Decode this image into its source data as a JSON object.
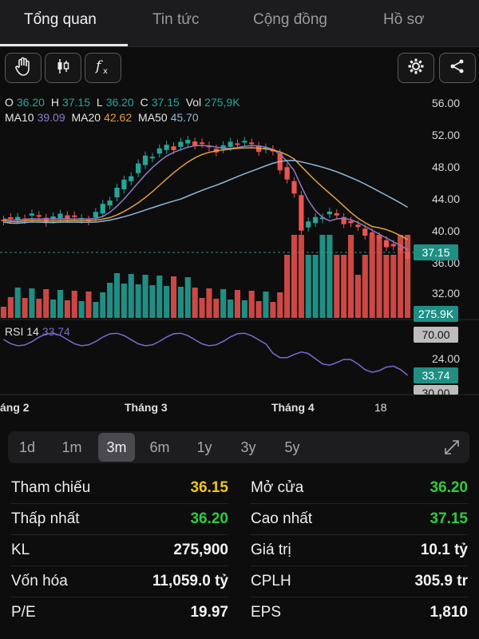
{
  "tabs": [
    {
      "label": "Tổng quan",
      "active": true
    },
    {
      "label": "Tin tức",
      "active": false
    },
    {
      "label": "Cộng đồng",
      "active": false
    },
    {
      "label": "Hồ sơ",
      "active": false
    }
  ],
  "toolbar": {
    "icons": [
      "hand-icon",
      "candlestick-icon",
      "function-icon",
      "settings-icon",
      "share-icon"
    ]
  },
  "ohlc": {
    "o_label": "O",
    "o": "36.20",
    "h_label": "H",
    "h": "37.15",
    "l_label": "L",
    "l": "36.20",
    "c_label": "C",
    "c": "37.15",
    "vol_label": "Vol",
    "vol": "275,9K"
  },
  "ma": {
    "ma10_label": "MA10",
    "ma10": "39.09",
    "ma20_label": "MA20",
    "ma20": "42.62",
    "ma50_label": "MA50",
    "ma50": "45.70"
  },
  "colors": {
    "up": "#26a69a",
    "down": "#ef5350",
    "ma10": "#8e7cc3",
    "ma20": "#e0a040",
    "ma50": "#8fb8d8",
    "ref": "#f5c518",
    "green": "#2ecc40",
    "rsi": "#7b6bd0"
  },
  "price_axis": [
    "56.00",
    "52.00",
    "48.00",
    "44.00",
    "40.00",
    "36.00",
    "32.00"
  ],
  "price_tag": "37.15",
  "volume_tag": "275.9K",
  "rsi": {
    "label": "RSI 14",
    "value": "33.74",
    "axis": [
      "70.00",
      "24.00",
      "30.00"
    ]
  },
  "months": [
    "áng 2",
    "Tháng 3",
    "Tháng 4",
    "18"
  ],
  "ranges": [
    "1d",
    "1m",
    "3m",
    "6m",
    "1y",
    "3y",
    "5y"
  ],
  "active_range": "3m",
  "stats_left": [
    {
      "label": "Tham chiếu",
      "value": "36.15",
      "color": "#f5c518"
    },
    {
      "label": "Thấp nhất",
      "value": "36.20",
      "color": "#2ecc40"
    },
    {
      "label": "KL",
      "value": "275,900",
      "color": "#f2f2f2"
    },
    {
      "label": "Vốn hóa",
      "value": "11,059.0 tỷ",
      "color": "#f2f2f2"
    },
    {
      "label": "P/E",
      "value": "19.97",
      "color": "#f2f2f2"
    }
  ],
  "stats_right": [
    {
      "label": "Mở cửa",
      "value": "36.20",
      "color": "#2ecc40"
    },
    {
      "label": "Cao nhất",
      "value": "37.15",
      "color": "#2ecc40"
    },
    {
      "label": "Giá trị",
      "value": "10.1 tỷ",
      "color": "#f2f2f2"
    },
    {
      "label": "CPLH",
      "value": "305.9 tr",
      "color": "#f2f2f2"
    },
    {
      "label": "EPS",
      "value": "1,810",
      "color": "#f2f2f2"
    }
  ]
}
